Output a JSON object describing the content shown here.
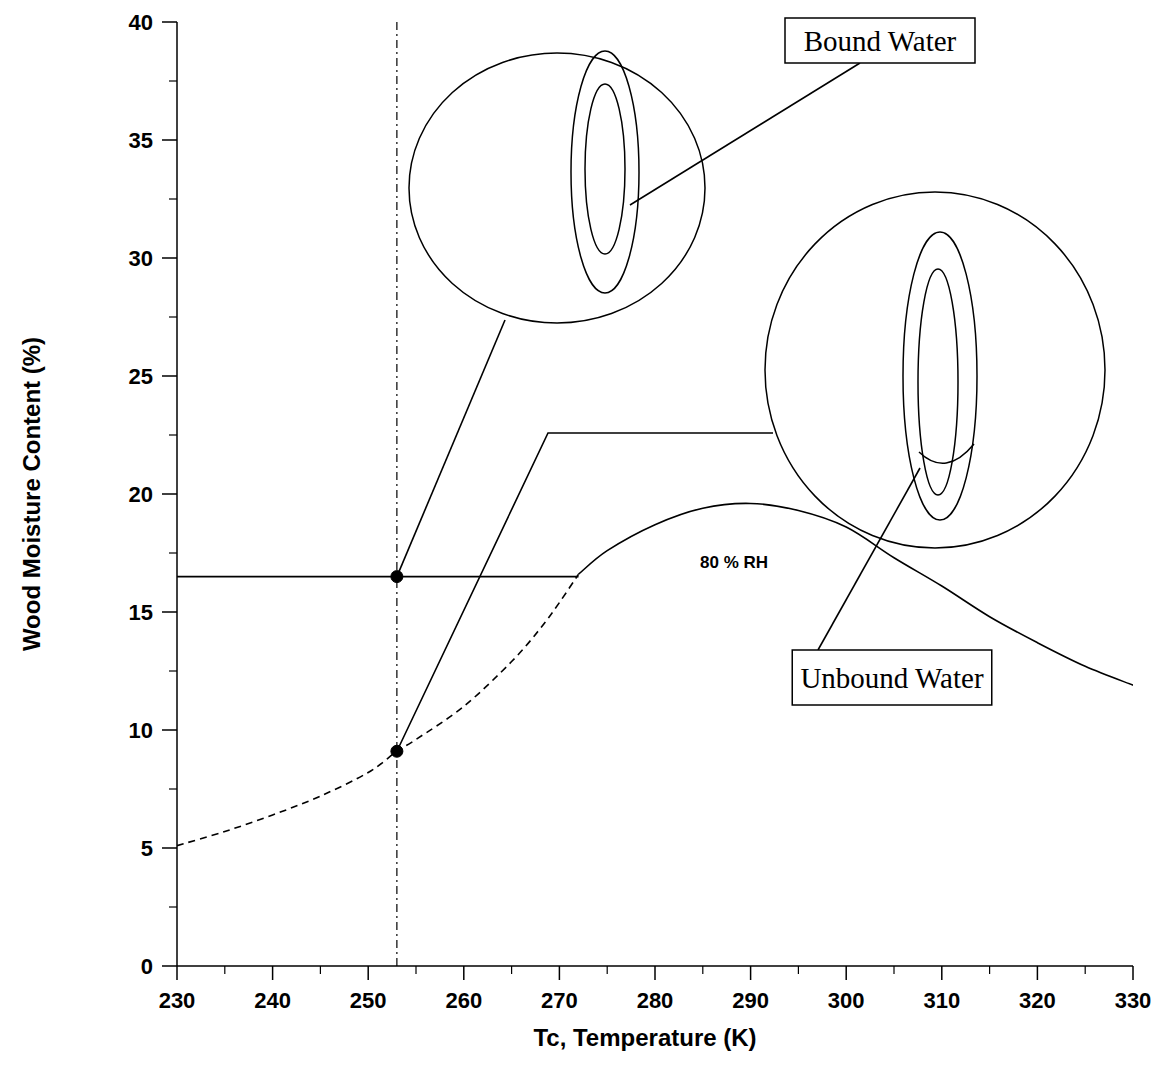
{
  "chart_data": {
    "type": "line",
    "xlabel": "Tc, Temperature (K)",
    "ylabel": "Wood Moisture Content (%)",
    "xlim": [
      230,
      330
    ],
    "ylim": [
      0,
      40
    ],
    "xticks": [
      230,
      240,
      250,
      260,
      270,
      280,
      290,
      300,
      310,
      320,
      330
    ],
    "yticks": [
      0,
      5,
      10,
      15,
      20,
      25,
      30,
      35,
      40
    ],
    "color": "#000000",
    "grid": false,
    "series": [
      {
        "x": [
          272,
          275,
          280,
          285,
          290,
          295,
          300,
          305,
          310,
          315,
          320,
          325,
          330
        ],
        "values": [
          16.6,
          17.6,
          18.7,
          19.4,
          19.6,
          19.3,
          18.6,
          17.3,
          16.1,
          14.8,
          13.7,
          12.7,
          11.9
        ],
        "line_style": "solid"
      },
      {
        "x": [
          230,
          235,
          240,
          245,
          250,
          253,
          255,
          260,
          265,
          268,
          270,
          272
        ],
        "values": [
          5.1,
          5.7,
          6.4,
          7.2,
          8.2,
          9.1,
          9.6,
          11.0,
          12.9,
          14.3,
          15.4,
          16.6
        ],
        "line_style": "dashed"
      },
      {
        "x": [
          230,
          272
        ],
        "values": [
          16.5,
          16.5
        ],
        "line_style": "solid"
      },
      {
        "x": [
          253,
          253
        ],
        "values": [
          0,
          40
        ],
        "line_style": "dashdot"
      },
      {
        "type": "scatter",
        "x": [
          253,
          253
        ],
        "values": [
          16.5,
          9.1
        ],
        "marker": "circle"
      }
    ],
    "annotations": [
      "80 % RH",
      "Bound Water",
      "Unbound Water"
    ]
  }
}
